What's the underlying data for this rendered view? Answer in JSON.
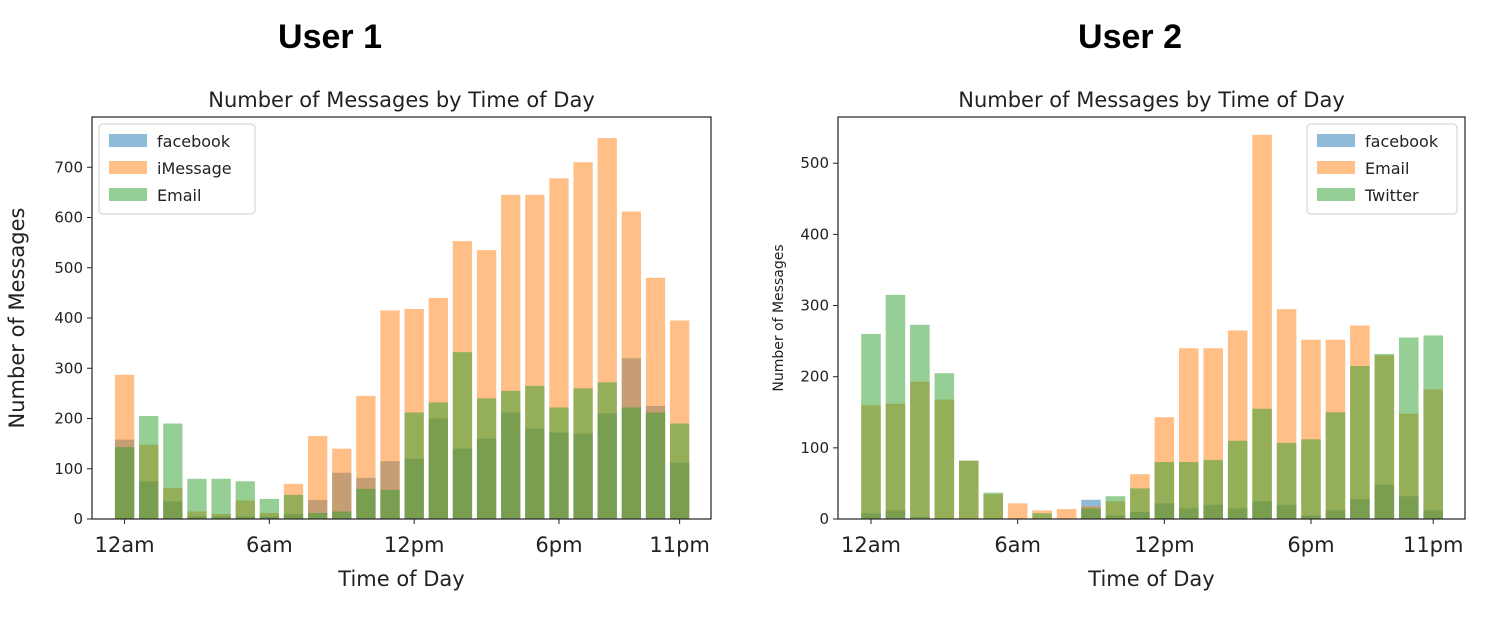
{
  "headings": [
    "User 1",
    "User 2"
  ],
  "chart_data": [
    {
      "type": "bar",
      "title": "Number of Messages by Time of Day",
      "xlabel": "Time of Day",
      "ylabel": "Number of Messages",
      "ylim": [
        0,
        800
      ],
      "yticks": [
        0,
        100,
        200,
        300,
        400,
        500,
        600,
        700
      ],
      "xticks": [
        {
          "hour": 0,
          "label": "12am"
        },
        {
          "hour": 6,
          "label": "6am"
        },
        {
          "hour": 12,
          "label": "12pm"
        },
        {
          "hour": 18,
          "label": "6pm"
        },
        {
          "hour": 23,
          "label": "11pm"
        }
      ],
      "legend_position": "top-left",
      "grid": false,
      "x": [
        0,
        1,
        2,
        3,
        4,
        5,
        6,
        7,
        8,
        9,
        10,
        11,
        12,
        13,
        14,
        15,
        16,
        17,
        18,
        19,
        20,
        21,
        22,
        23
      ],
      "series": [
        {
          "name": "facebook",
          "color": "#1f77b4",
          "values": [
            158,
            75,
            35,
            5,
            5,
            5,
            5,
            10,
            38,
            92,
            82,
            115,
            120,
            200,
            140,
            160,
            212,
            180,
            172,
            170,
            210,
            320,
            225,
            112
          ]
        },
        {
          "name": "iMessage",
          "color": "#ff7f0e",
          "values": [
            287,
            148,
            62,
            15,
            10,
            37,
            12,
            70,
            165,
            140,
            245,
            415,
            418,
            440,
            553,
            535,
            645,
            645,
            678,
            710,
            758,
            612,
            480,
            395
          ]
        },
        {
          "name": "Email",
          "color": "#2ca02c",
          "values": [
            143,
            205,
            190,
            80,
            80,
            75,
            40,
            48,
            12,
            15,
            60,
            58,
            212,
            232,
            332,
            240,
            255,
            265,
            222,
            260,
            272,
            222,
            212,
            190
          ]
        }
      ]
    },
    {
      "type": "bar",
      "title": "Number of Messages by Time of Day",
      "xlabel": "Time of Day",
      "ylabel": "Number of Messages",
      "ylim": [
        0,
        565
      ],
      "yticks": [
        0,
        100,
        200,
        300,
        400,
        500
      ],
      "xticks": [
        {
          "hour": 0,
          "label": "12am"
        },
        {
          "hour": 6,
          "label": "6am"
        },
        {
          "hour": 12,
          "label": "12pm"
        },
        {
          "hour": 18,
          "label": "6pm"
        },
        {
          "hour": 23,
          "label": "11pm"
        }
      ],
      "legend_position": "top-right",
      "grid": false,
      "x": [
        0,
        1,
        2,
        3,
        4,
        5,
        6,
        7,
        8,
        9,
        10,
        11,
        12,
        13,
        14,
        15,
        16,
        17,
        18,
        19,
        20,
        21,
        22,
        23
      ],
      "series": [
        {
          "name": "facebook",
          "color": "#1f77b4",
          "values": [
            8,
            12,
            3,
            0,
            0,
            0,
            0,
            0,
            0,
            27,
            5,
            10,
            22,
            15,
            20,
            15,
            25,
            20,
            5,
            12,
            28,
            48,
            32,
            12
          ]
        },
        {
          "name": "Email",
          "color": "#ff7f0e",
          "values": [
            160,
            162,
            193,
            168,
            82,
            35,
            22,
            12,
            14,
            18,
            25,
            63,
            143,
            240,
            240,
            265,
            540,
            295,
            252,
            252,
            272,
            230,
            148,
            182
          ]
        },
        {
          "name": "Twitter",
          "color": "#2ca02c",
          "values": [
            260,
            315,
            273,
            205,
            82,
            37,
            0,
            8,
            0,
            15,
            32,
            43,
            80,
            80,
            83,
            110,
            155,
            107,
            112,
            150,
            215,
            232,
            255,
            258
          ]
        }
      ]
    }
  ]
}
